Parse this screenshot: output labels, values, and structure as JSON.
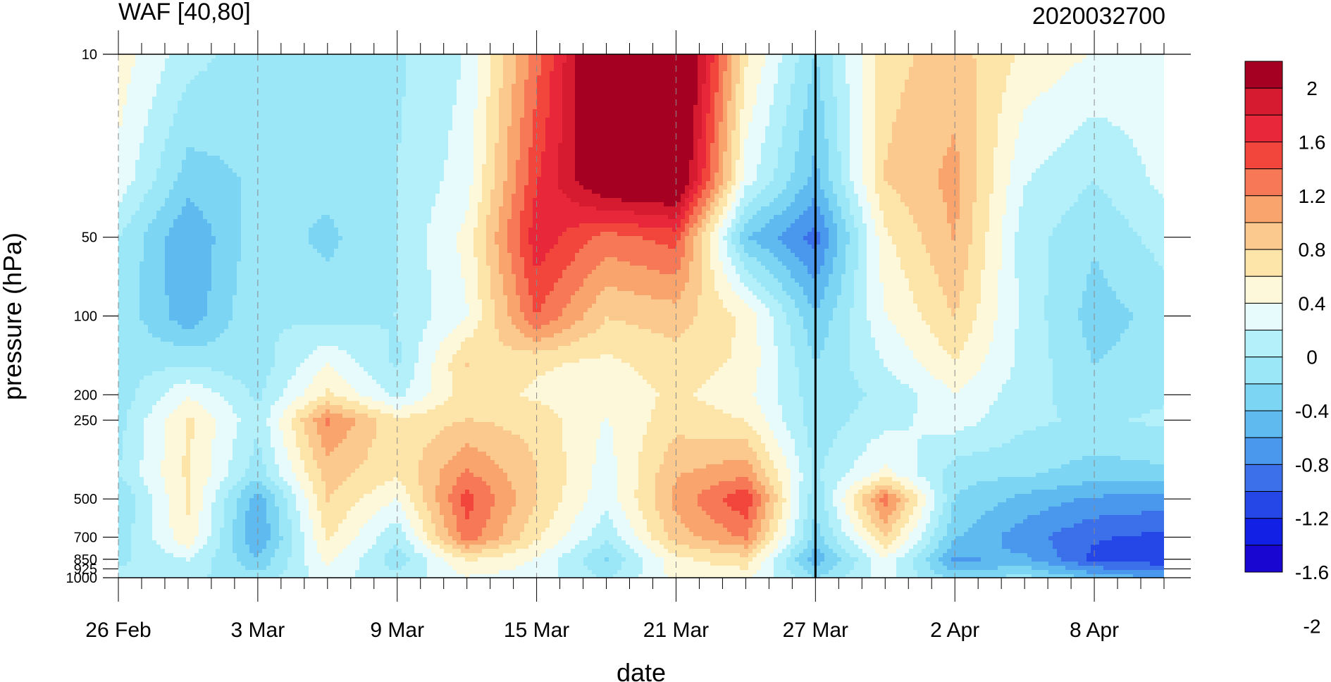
{
  "chart_data": {
    "type": "heatmap",
    "title_left": "WAF [40,80]",
    "title_right": "2020032700",
    "xlabel": "date",
    "ylabel": "pressure (hPa)",
    "x_tick_labels": [
      "26 Feb",
      "3 Mar",
      "9 Mar",
      "15 Mar",
      "21 Mar",
      "27 Mar",
      "2 Apr",
      "8 Apr"
    ],
    "x_tick_days": [
      0,
      6,
      12,
      18,
      24,
      30,
      36,
      42
    ],
    "x_range_days": [
      0,
      45
    ],
    "y_tick_labels": [
      "10",
      "50",
      "100",
      "200",
      "250",
      "500",
      "700",
      "850",
      "925",
      "1000"
    ],
    "y_tick_values": [
      10,
      50,
      100,
      200,
      250,
      500,
      700,
      850,
      925,
      1000
    ],
    "y_scale": "log",
    "y_range": [
      1000,
      10
    ],
    "grid": "dashed vertical lines at labeled dates",
    "reference_line_day": 30,
    "legend_position": "right",
    "colorbar_labels": [
      "2",
      "1.6",
      "1.2",
      "0.8",
      "0.4",
      "0",
      "-0.4",
      "-0.8",
      "-1.2",
      "-1.6",
      "-2"
    ],
    "colorbar_colors": [
      "#a50021",
      "#d61a2f",
      "#e8283a",
      "#f2463c",
      "#f77856",
      "#f9a36d",
      "#fbc98d",
      "#fde5a9",
      "#fdf8da",
      "#e8fbfc",
      "#b4f0f9",
      "#9be6f7",
      "#7dd5f4",
      "#5fbaf0",
      "#4a97ee",
      "#3c70eb",
      "#2547e8",
      "#1220e6",
      "#1a06d1"
    ],
    "z_grid_step_days": 3,
    "z_grid_levels_hPa": [
      10,
      30,
      50,
      100,
      150,
      200,
      250,
      400,
      500,
      700,
      850,
      1000
    ],
    "z": [
      [
        0.25,
        -0.25,
        -0.5,
        -0.45,
        -0.4,
        -0.1,
        1.2,
        2.6,
        2.8,
        0.4,
        -0.6,
        0.5,
        0.7,
        0.3,
        0.1,
        0.0
      ],
      [
        0.05,
        -0.7,
        -0.55,
        -0.5,
        -0.35,
        0.0,
        1.5,
        2.4,
        2.5,
        0.0,
        -0.9,
        0.6,
        0.9,
        -0.1,
        -0.35,
        -0.05
      ],
      [
        -0.35,
        -1.05,
        -0.45,
        -0.65,
        -0.35,
        0.2,
        1.7,
        1.2,
        1.4,
        -0.8,
        -1.4,
        0.3,
        0.85,
        -0.25,
        -0.55,
        -0.25
      ],
      [
        -0.4,
        -1.0,
        -0.35,
        -0.45,
        -0.35,
        0.1,
        1.3,
        0.6,
        0.7,
        0.3,
        -0.8,
        0.1,
        0.6,
        -0.2,
        -0.7,
        -0.5
      ],
      [
        -0.45,
        -0.4,
        -0.5,
        0.1,
        -0.4,
        0.6,
        0.4,
        0.3,
        0.5,
        0.3,
        -0.6,
        -0.1,
        0.35,
        -0.2,
        -0.6,
        -0.45
      ],
      [
        -0.5,
        0.1,
        -0.4,
        0.4,
        -0.2,
        0.5,
        0.3,
        0.2,
        0.4,
        0.2,
        -0.5,
        -0.3,
        0.1,
        -0.25,
        -0.5,
        -0.4
      ],
      [
        -0.45,
        0.4,
        -0.3,
        1.1,
        0.4,
        0.6,
        0.5,
        0.1,
        0.5,
        0.35,
        -0.5,
        -0.2,
        0.0,
        -0.3,
        -0.4,
        -0.3
      ],
      [
        -0.35,
        0.4,
        -0.5,
        0.7,
        0.4,
        1.1,
        0.6,
        0.0,
        0.8,
        1.0,
        -0.4,
        0.2,
        -0.5,
        -0.55,
        -0.7,
        -0.65
      ],
      [
        -0.6,
        0.4,
        -1.0,
        0.6,
        0.1,
        1.4,
        0.6,
        -0.05,
        0.9,
        1.5,
        -0.55,
        1.2,
        -0.6,
        -0.9,
        -1.1,
        -1.15
      ],
      [
        -0.5,
        0.3,
        -1.1,
        0.4,
        -0.3,
        1.2,
        0.4,
        -0.3,
        0.7,
        1.1,
        -0.7,
        0.6,
        -0.8,
        -1.2,
        -1.5,
        -1.6
      ],
      [
        -0.4,
        -0.1,
        -0.8,
        0.2,
        -0.5,
        0.4,
        0.1,
        -0.6,
        0.3,
        0.5,
        -1.0,
        0.1,
        -1.1,
        -1.0,
        -1.6,
        -1.7
      ],
      [
        -0.3,
        -0.3,
        -0.5,
        0.0,
        -0.3,
        0.1,
        0.0,
        -0.4,
        0.2,
        0.2,
        -0.6,
        0.0,
        -0.7,
        -0.5,
        -0.9,
        -1.1
      ]
    ]
  }
}
